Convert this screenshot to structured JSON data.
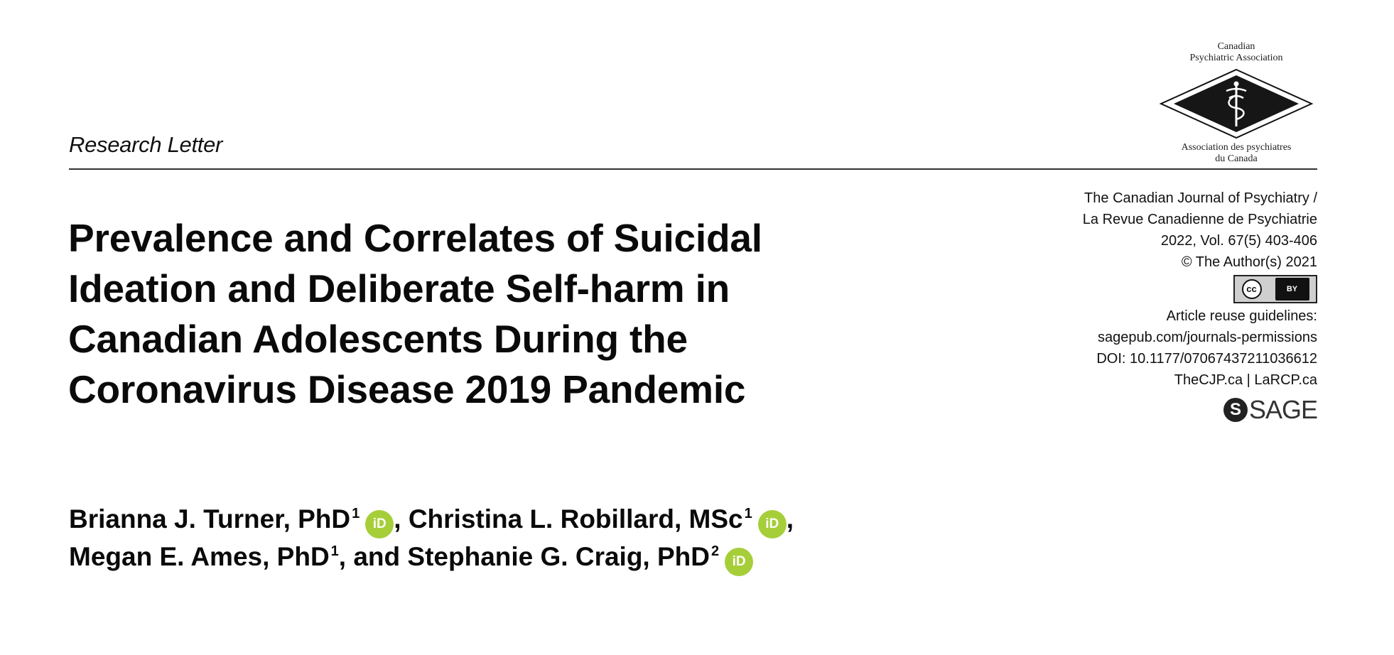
{
  "logo": {
    "top_text": [
      "Canadian",
      "Psychiatric Association"
    ],
    "bottom_text": [
      "Association des psychiatres",
      "du Canada"
    ],
    "icon": "caduceus-diamond-logo"
  },
  "section_label": "Research Letter",
  "title_lines": [
    "Prevalence and Correlates of Suicidal",
    "Ideation and Deliberate Self-harm in",
    "Canadian Adolescents During the",
    "Coronavirus Disease 2019 Pandemic"
  ],
  "meta": {
    "journal_en": "The Canadian Journal of Psychiatry /",
    "journal_fr": "La Revue Canadienne de Psychiatrie",
    "volume": "2022, Vol. 67(5) 403-406",
    "copyright": "© The Author(s) 2021",
    "license_badge": {
      "cc": "cc",
      "by": "BY",
      "icon": "creative-commons-by-icon"
    },
    "reuse_label": "Article reuse guidelines:",
    "reuse_url": "sagepub.com/journals-permissions",
    "doi": "DOI: 10.1177/07067437211036612",
    "sites": "TheCJP.ca | LaRCP.ca",
    "publisher_s": "S",
    "publisher": "SAGE"
  },
  "authors": {
    "a1": {
      "name": "Brianna J. Turner, PhD",
      "sup": "1",
      "orcid": "iD"
    },
    "a2": {
      "name": "Christina L. Robillard, MSc",
      "sup": "1",
      "orcid": "iD"
    },
    "a3": {
      "name": "Megan E. Ames, PhD",
      "sup": "1"
    },
    "and_text": "and",
    "a4": {
      "name": "Stephanie G. Craig, PhD",
      "sup": "2",
      "orcid": "iD"
    },
    "comma": ","
  },
  "colors": {
    "orcid_green": "#a6ce39",
    "text": "#111111",
    "rule": "#333333"
  }
}
